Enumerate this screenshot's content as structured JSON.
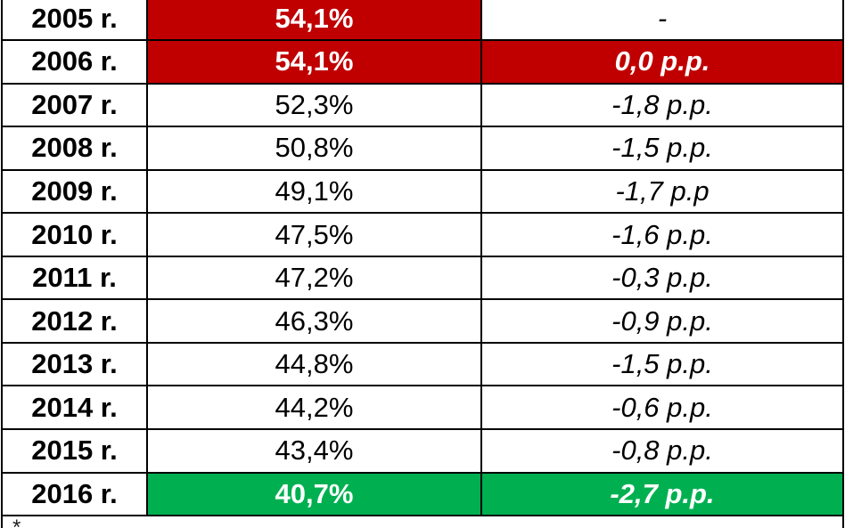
{
  "colors": {
    "red": "#C00000",
    "green": "#00B050",
    "highlight_text": "#FFFFFF"
  },
  "chart_data": {
    "type": "table",
    "rows": [
      {
        "year": "2005 r.",
        "value": "54,1%",
        "change": "-",
        "value_highlight": "red"
      },
      {
        "year": "2006 r.",
        "value": "54,1%",
        "change": "0,0 p.p.",
        "value_highlight": "red",
        "change_highlight": "red"
      },
      {
        "year": "2007 r.",
        "value": "52,3%",
        "change": "-1,8 p.p."
      },
      {
        "year": "2008 r.",
        "value": "50,8%",
        "change": "-1,5 p.p."
      },
      {
        "year": "2009 r.",
        "value": "49,1%",
        "change": "-1,7 p.p"
      },
      {
        "year": "2010 r.",
        "value": "47,5%",
        "change": "-1,6 p.p."
      },
      {
        "year": "2011 r.",
        "value": "47,2%",
        "change": "-0,3 p.p."
      },
      {
        "year": "2012 r.",
        "value": "46,3%",
        "change": "-0,9 p.p."
      },
      {
        "year": "2013 r.",
        "value": "44,8%",
        "change": "-1,5 p.p."
      },
      {
        "year": "2014 r.",
        "value": "44,2%",
        "change": "-0,6 p.p."
      },
      {
        "year": "2015 r.",
        "value": "43,4%",
        "change": "-0,8 p.p."
      },
      {
        "year": "2016 r.",
        "value": "40,7%",
        "change": "-2,7 p.p.",
        "value_highlight": "green",
        "change_highlight": "green"
      }
    ],
    "footnote": "*"
  }
}
